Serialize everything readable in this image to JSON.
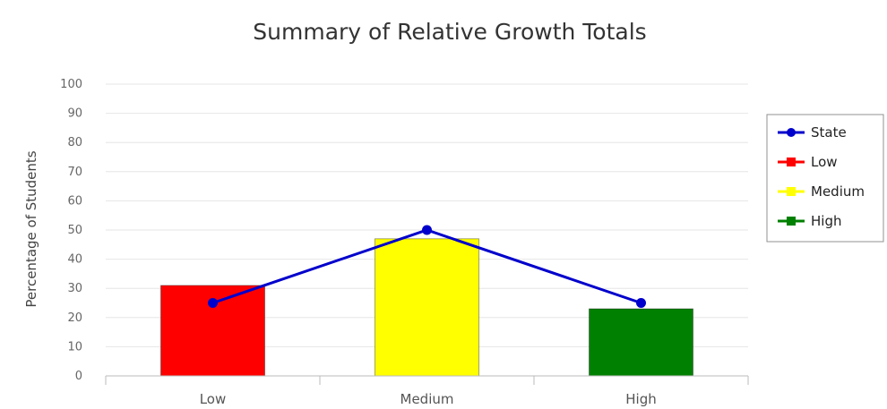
{
  "chart_data": {
    "type": "bar",
    "title": "Summary of Relative Growth Totals",
    "xlabel": "",
    "ylabel": "Percentage of Students",
    "ylim": [
      0,
      100
    ],
    "yticks": [
      0,
      10,
      20,
      30,
      40,
      50,
      60,
      70,
      80,
      90,
      100
    ],
    "categories": [
      "Low",
      "Medium",
      "High"
    ],
    "series": [
      {
        "name": "Low",
        "kind": "bar",
        "color": "#ff0000",
        "values": [
          31,
          null,
          null
        ]
      },
      {
        "name": "Medium",
        "kind": "bar",
        "color": "#ffff00",
        "values": [
          null,
          47,
          null
        ]
      },
      {
        "name": "High",
        "kind": "bar",
        "color": "#008000",
        "values": [
          null,
          null,
          23
        ]
      },
      {
        "name": "State",
        "kind": "line",
        "color": "#0000cc",
        "values": [
          25,
          50,
          25
        ]
      }
    ],
    "legend": {
      "placement": "right",
      "entries": [
        {
          "label": "State",
          "color": "#0000cc",
          "marker": "line-dot"
        },
        {
          "label": "Low",
          "color": "#ff0000",
          "marker": "line-square"
        },
        {
          "label": "Medium",
          "color": "#ffff00",
          "marker": "line-square"
        },
        {
          "label": "High",
          "color": "#008000",
          "marker": "line-square"
        }
      ]
    },
    "grid": true
  }
}
